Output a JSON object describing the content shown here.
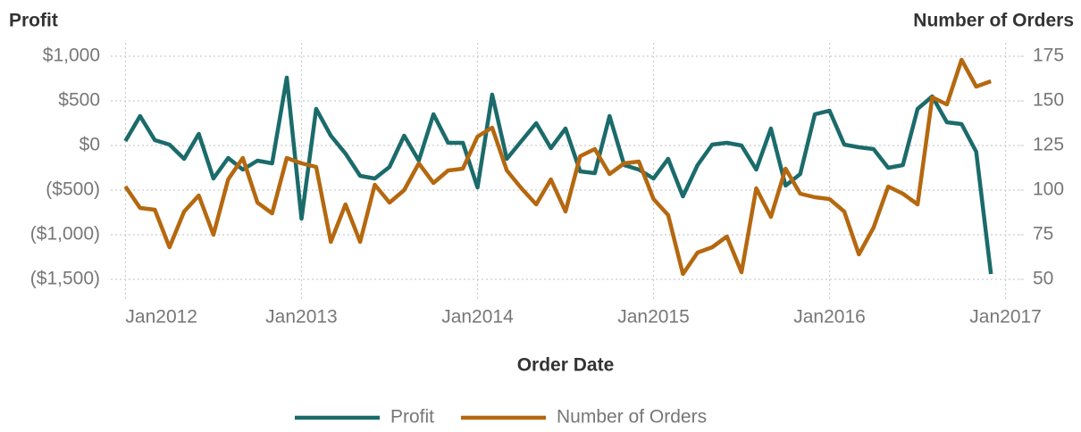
{
  "chart_data": {
    "type": "line",
    "y_label": "Profit",
    "y2_label": "Number of Orders",
    "x_label": "Order Date",
    "x": [
      "2012-01",
      "2012-02",
      "2012-03",
      "2012-04",
      "2012-05",
      "2012-06",
      "2012-07",
      "2012-08",
      "2012-09",
      "2012-10",
      "2012-11",
      "2012-12",
      "2013-01",
      "2013-02",
      "2013-03",
      "2013-04",
      "2013-05",
      "2013-06",
      "2013-07",
      "2013-08",
      "2013-09",
      "2013-10",
      "2013-11",
      "2013-12",
      "2014-01",
      "2014-02",
      "2014-03",
      "2014-04",
      "2014-05",
      "2014-06",
      "2014-07",
      "2014-08",
      "2014-09",
      "2014-10",
      "2014-11",
      "2014-12",
      "2015-01",
      "2015-02",
      "2015-03",
      "2015-04",
      "2015-05",
      "2015-06",
      "2015-07",
      "2015-08",
      "2015-09",
      "2015-10",
      "2015-11",
      "2015-12",
      "2016-01",
      "2016-02",
      "2016-03",
      "2016-04",
      "2016-05",
      "2016-06",
      "2016-07",
      "2016-08",
      "2016-09",
      "2016-10",
      "2016-11",
      "2016-12"
    ],
    "series": [
      {
        "name": "Profit",
        "color": "#1b6b6b",
        "values": [
          50,
          330,
          60,
          10,
          -150,
          130,
          -370,
          -140,
          -270,
          -170,
          -200,
          760,
          -820,
          410,
          110,
          -90,
          -340,
          -370,
          -240,
          110,
          -170,
          350,
          30,
          30,
          -470,
          570,
          -150,
          50,
          250,
          -30,
          190,
          -290,
          -310,
          330,
          -220,
          -270,
          -370,
          -150,
          -570,
          -220,
          10,
          30,
          0,
          -270,
          190,
          -450,
          -320,
          350,
          390,
          10,
          -20,
          -40,
          -250,
          -220,
          410,
          550,
          260,
          240,
          -70,
          -1440
        ]
      },
      {
        "name": "Number of Orders",
        "color": "#b5680f",
        "axis": "y2",
        "values": [
          102,
          90,
          89,
          68,
          88,
          97,
          75,
          106,
          118,
          93,
          87,
          118,
          115,
          113,
          71,
          92,
          71,
          103,
          93,
          100,
          115,
          104,
          111,
          112,
          130,
          135,
          111,
          101,
          92,
          106,
          88,
          119,
          123,
          109,
          115,
          116,
          95,
          86,
          53,
          65,
          68,
          74,
          54,
          101,
          85,
          112,
          98,
          96,
          95,
          88,
          64,
          79,
          102,
          98,
          92,
          152,
          148,
          173,
          158,
          161
        ]
      }
    ],
    "xlim": [
      "2011-12",
      "2017-02"
    ],
    "xticks": [
      {
        "value": "2012-01",
        "label": "Jan2012"
      },
      {
        "value": "2013-01",
        "label": "Jan2013"
      },
      {
        "value": "2014-01",
        "label": "Jan2014"
      },
      {
        "value": "2015-01",
        "label": "Jan2015"
      },
      {
        "value": "2016-01",
        "label": "Jan2016"
      },
      {
        "value": "2017-01",
        "label": "Jan2017"
      }
    ],
    "ylim": [
      -1650,
      1150
    ],
    "yticks": [
      {
        "value": 1000,
        "label": "$1,000"
      },
      {
        "value": 500,
        "label": "$500"
      },
      {
        "value": 0,
        "label": "$0"
      },
      {
        "value": -500,
        "label": "($500)"
      },
      {
        "value": -1000,
        "label": "($1,000)"
      },
      {
        "value": -1500,
        "label": "($1,500)"
      }
    ],
    "y2lim": [
      42.5,
      182.5
    ],
    "y2ticks": [
      175,
      150,
      125,
      100,
      75,
      50
    ],
    "grid": true,
    "legend": "bottom"
  }
}
